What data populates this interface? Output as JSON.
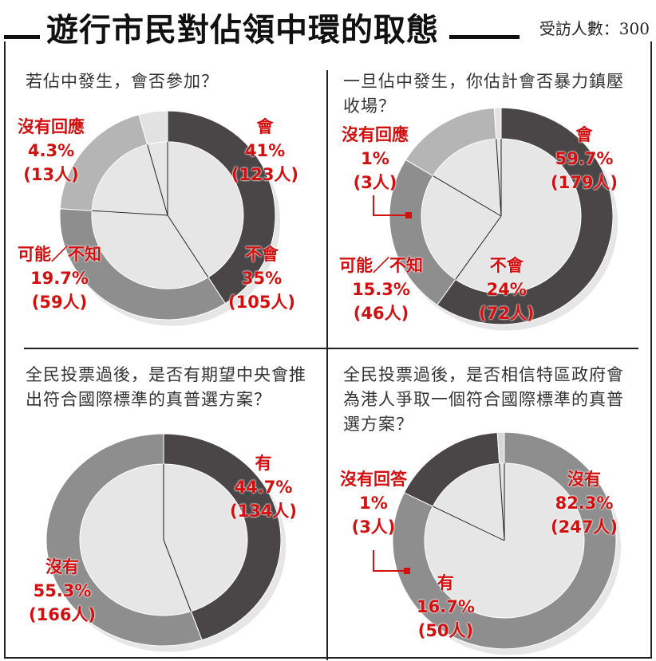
{
  "header": {
    "title": "遊行市民對佔領中環的取態",
    "sample_label": "受訪人數：300"
  },
  "chart_data": [
    {
      "type": "pie",
      "title": "若佔中發生，會否參加？",
      "slices": [
        {
          "label": "會",
          "percent": "41%",
          "count": "(123人)",
          "value": 41,
          "color": "#4a4547"
        },
        {
          "label": "不會",
          "percent": "35%",
          "count": "(105人)",
          "value": 35,
          "color": "#8e8e8e"
        },
        {
          "label": "可能／不知",
          "percent": "19.7%",
          "count": "(59人)",
          "value": 19.7,
          "color": "#b5b5b5"
        },
        {
          "label": "沒有回應",
          "percent": "4.3%",
          "count": "(13人)",
          "value": 4.3,
          "color": "#e2e2e2"
        }
      ]
    },
    {
      "type": "pie",
      "title": "一旦佔中發生，你估計會否暴力鎮壓收場？",
      "slices": [
        {
          "label": "會",
          "percent": "59.7%",
          "count": "(179人)",
          "value": 59.7,
          "color": "#4a4547"
        },
        {
          "label": "不會",
          "percent": "24%",
          "count": "(72人)",
          "value": 24,
          "color": "#8e8e8e"
        },
        {
          "label": "可能／不知",
          "percent": "15.3%",
          "count": "(46人)",
          "value": 15.3,
          "color": "#b5b5b5"
        },
        {
          "label": "沒有回應",
          "percent": "1%",
          "count": "(3人)",
          "value": 1,
          "color": "#e2e2e2"
        }
      ]
    },
    {
      "type": "pie",
      "title": "全民投票過後，是否有期望中央會推出符合國際標準的真普選方案？",
      "slices": [
        {
          "label": "有",
          "percent": "44.7%",
          "count": "(134人)",
          "value": 44.7,
          "color": "#4a4547"
        },
        {
          "label": "沒有",
          "percent": "55.3%",
          "count": "(166人)",
          "value": 55.3,
          "color": "#8e8e8e"
        }
      ]
    },
    {
      "type": "pie",
      "title": "全民投票過後，是否相信特區政府會為港人爭取一個符合國際標準的真普選方案？",
      "slices": [
        {
          "label": "沒有",
          "percent": "82.3%",
          "count": "(247人)",
          "value": 82.3,
          "color": "#8e8e8e"
        },
        {
          "label": "有",
          "percent": "16.7%",
          "count": "(50人)",
          "value": 16.7,
          "color": "#4a4547"
        },
        {
          "label": "沒有回答",
          "percent": "1%",
          "count": "(3人)",
          "value": 1,
          "color": "#d6d6d6"
        }
      ]
    }
  ]
}
